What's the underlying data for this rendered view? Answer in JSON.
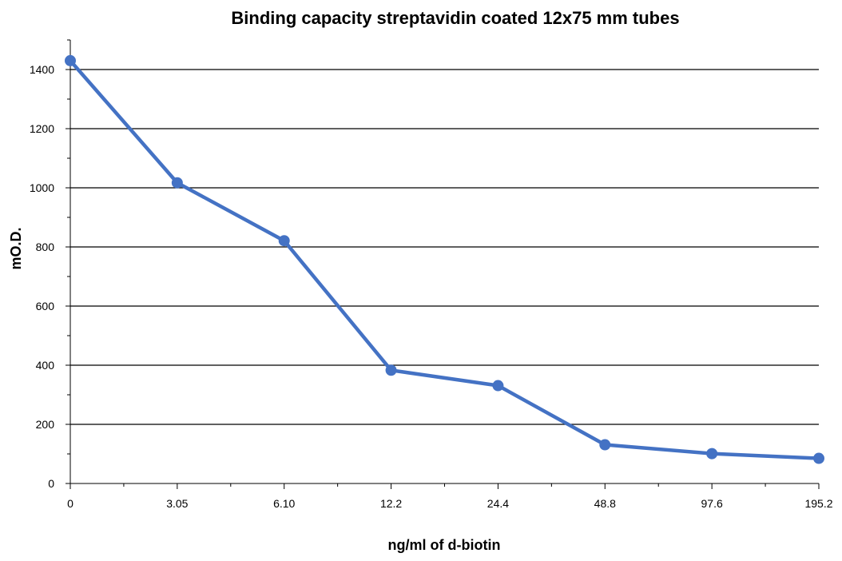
{
  "chart_data": {
    "type": "line",
    "title": "Binding capacity streptavidin coated 12x75 mm tubes",
    "xlabel": "ng/ml of d-biotin",
    "ylabel": "mO.D.",
    "categories": [
      "0",
      "3.05",
      "6.10",
      "12.2",
      "24.4",
      "48.8",
      "97.6",
      "195.2"
    ],
    "series": [
      {
        "values": [
          1430,
          1017,
          821,
          383,
          331,
          131,
          101,
          85
        ]
      }
    ],
    "ylim": [
      0,
      1500
    ],
    "yticks": [
      0,
      200,
      400,
      600,
      800,
      1000,
      1200,
      1400
    ],
    "grid": true,
    "colors": {
      "series": "#4472C4",
      "grid": "#000000",
      "axis": "#000000"
    }
  }
}
